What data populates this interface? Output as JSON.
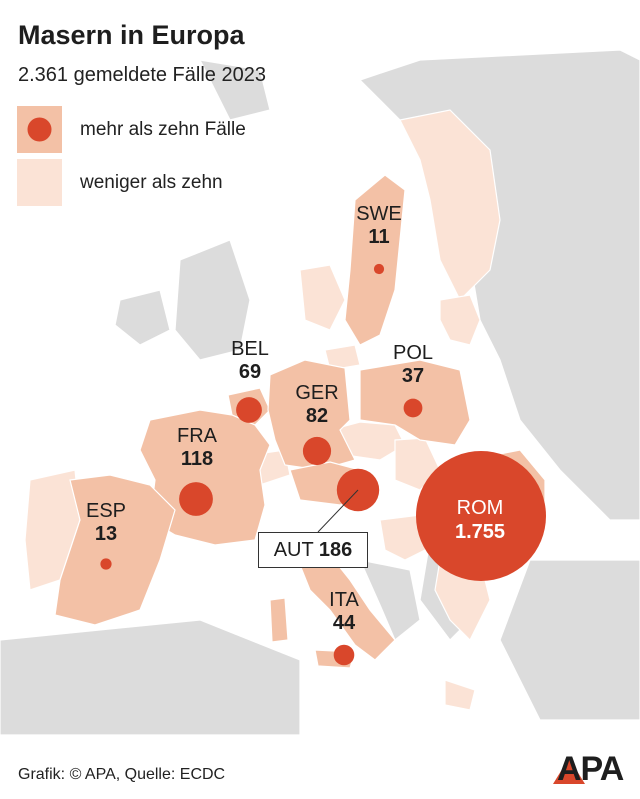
{
  "title": "Masern in Europa",
  "subtitle": "2.361 gemeldete Fälle 2023",
  "legend": {
    "more": "mehr als zehn Fälle",
    "less": "weniger als zehn"
  },
  "colors": {
    "circle": "#d9472b",
    "country_more": "#f3c1a6",
    "country_less": "#fbe3d6",
    "land_other": "#dcdcdc",
    "sea": "#ffffff",
    "border": "#ffffff"
  },
  "countries": [
    {
      "code": "SWE",
      "value": "11",
      "cases": 11
    },
    {
      "code": "BEL",
      "value": "69",
      "cases": 69
    },
    {
      "code": "POL",
      "value": "37",
      "cases": 37
    },
    {
      "code": "GER",
      "value": "82",
      "cases": 82
    },
    {
      "code": "FRA",
      "value": "118",
      "cases": 118
    },
    {
      "code": "ESP",
      "value": "13",
      "cases": 13
    },
    {
      "code": "AUT",
      "value": "186",
      "cases": 186
    },
    {
      "code": "ROM",
      "value": "1.755",
      "cases": 1755
    },
    {
      "code": "ITA",
      "value": "44",
      "cases": 44
    }
  ],
  "footer": "Grafik: © APA, Quelle: ECDC",
  "logo": "APA"
}
